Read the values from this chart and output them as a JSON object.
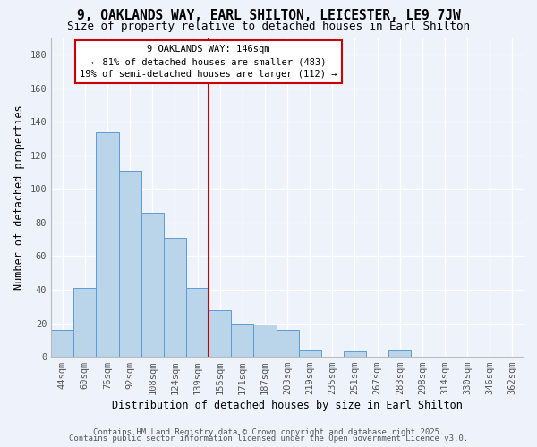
{
  "title": "9, OAKLANDS WAY, EARL SHILTON, LEICESTER, LE9 7JW",
  "subtitle": "Size of property relative to detached houses in Earl Shilton",
  "xlabel": "Distribution of detached houses by size in Earl Shilton",
  "ylabel": "Number of detached properties",
  "bar_labels": [
    "44sqm",
    "60sqm",
    "76sqm",
    "92sqm",
    "108sqm",
    "124sqm",
    "139sqm",
    "155sqm",
    "171sqm",
    "187sqm",
    "203sqm",
    "219sqm",
    "235sqm",
    "251sqm",
    "267sqm",
    "283sqm",
    "298sqm",
    "314sqm",
    "330sqm",
    "346sqm",
    "362sqm"
  ],
  "bar_heights": [
    16,
    41,
    134,
    111,
    86,
    71,
    41,
    28,
    20,
    19,
    16,
    4,
    0,
    3,
    0,
    4,
    0,
    0,
    0,
    0,
    0
  ],
  "bar_color": "#bad4ea",
  "bar_edge_color": "#5b9bd5",
  "vline_x": 6.5,
  "vline_color": "#cc0000",
  "annotation_title": "9 OAKLANDS WAY: 146sqm",
  "annotation_line1": "← 81% of detached houses are smaller (483)",
  "annotation_line2": "19% of semi-detached houses are larger (112) →",
  "annotation_box_color": "#ffffff",
  "annotation_box_edge": "#cc0000",
  "ylim": [
    0,
    190
  ],
  "yticks": [
    0,
    20,
    40,
    60,
    80,
    100,
    120,
    140,
    160,
    180
  ],
  "footer1": "Contains HM Land Registry data © Crown copyright and database right 2025.",
  "footer2": "Contains public sector information licensed under the Open Government Licence v3.0.",
  "bg_color": "#eef2fb",
  "grid_color": "#ffffff",
  "title_fontsize": 10.5,
  "subtitle_fontsize": 9,
  "axis_label_fontsize": 8.5,
  "tick_fontsize": 7.5,
  "footer_fontsize": 6.5
}
